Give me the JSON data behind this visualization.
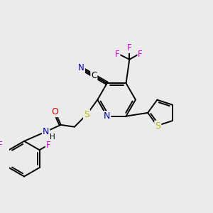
{
  "background_color": "#ebebeb",
  "atom_colors": {
    "C": "#000000",
    "N": "#0000cc",
    "O": "#dd0000",
    "S": "#bbbb00",
    "F": "#dd00dd",
    "H": "#000000"
  },
  "bond_color": "#000000",
  "lw": 1.4
}
